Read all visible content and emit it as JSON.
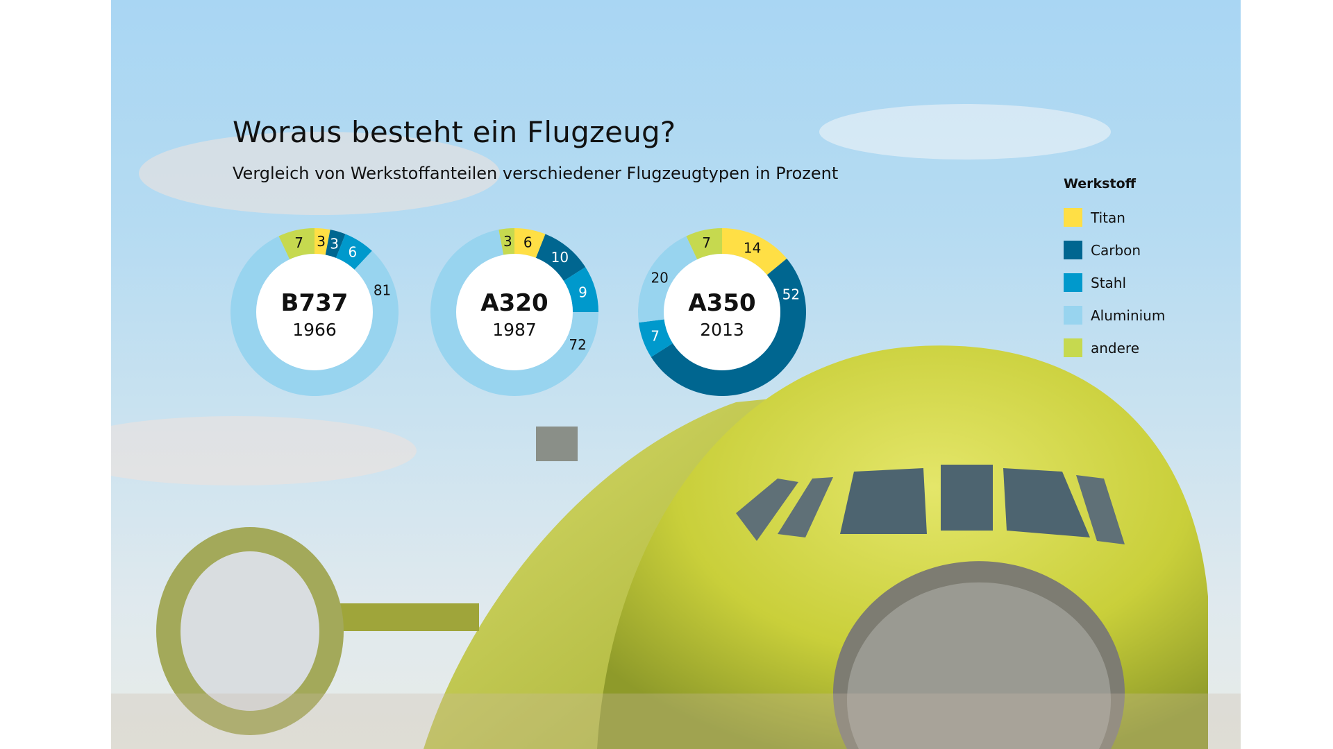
{
  "title": "Woraus besteht ein Flugzeug?",
  "subtitle": "Vergleich von Werkstoffanteilen verschiedener Flugzeugtypen in Prozent",
  "legend": {
    "title": "Werkstoff",
    "items": [
      {
        "label": "Titan",
        "color": "#ffdf45"
      },
      {
        "label": "Carbon",
        "color": "#006690"
      },
      {
        "label": "Stahl",
        "color": "#0099cc"
      },
      {
        "label": "Aluminium",
        "color": "#98d4ef"
      },
      {
        "label": "andere",
        "color": "#c6d94f"
      }
    ]
  },
  "chart_data": [
    {
      "type": "pie",
      "name": "B737",
      "year": "1966",
      "categories": [
        "Titan",
        "Carbon",
        "Stahl",
        "Aluminium",
        "andere"
      ],
      "values": [
        3,
        3,
        6,
        81,
        7
      ]
    },
    {
      "type": "pie",
      "name": "A320",
      "year": "1987",
      "categories": [
        "Titan",
        "Carbon",
        "Stahl",
        "Aluminium",
        "andere"
      ],
      "values": [
        6,
        10,
        9,
        72,
        3
      ]
    },
    {
      "type": "pie",
      "name": "A350",
      "year": "2013",
      "categories": [
        "Titan",
        "Carbon",
        "Stahl",
        "Aluminium",
        "andere"
      ],
      "values": [
        14,
        52,
        7,
        20,
        7
      ]
    }
  ]
}
